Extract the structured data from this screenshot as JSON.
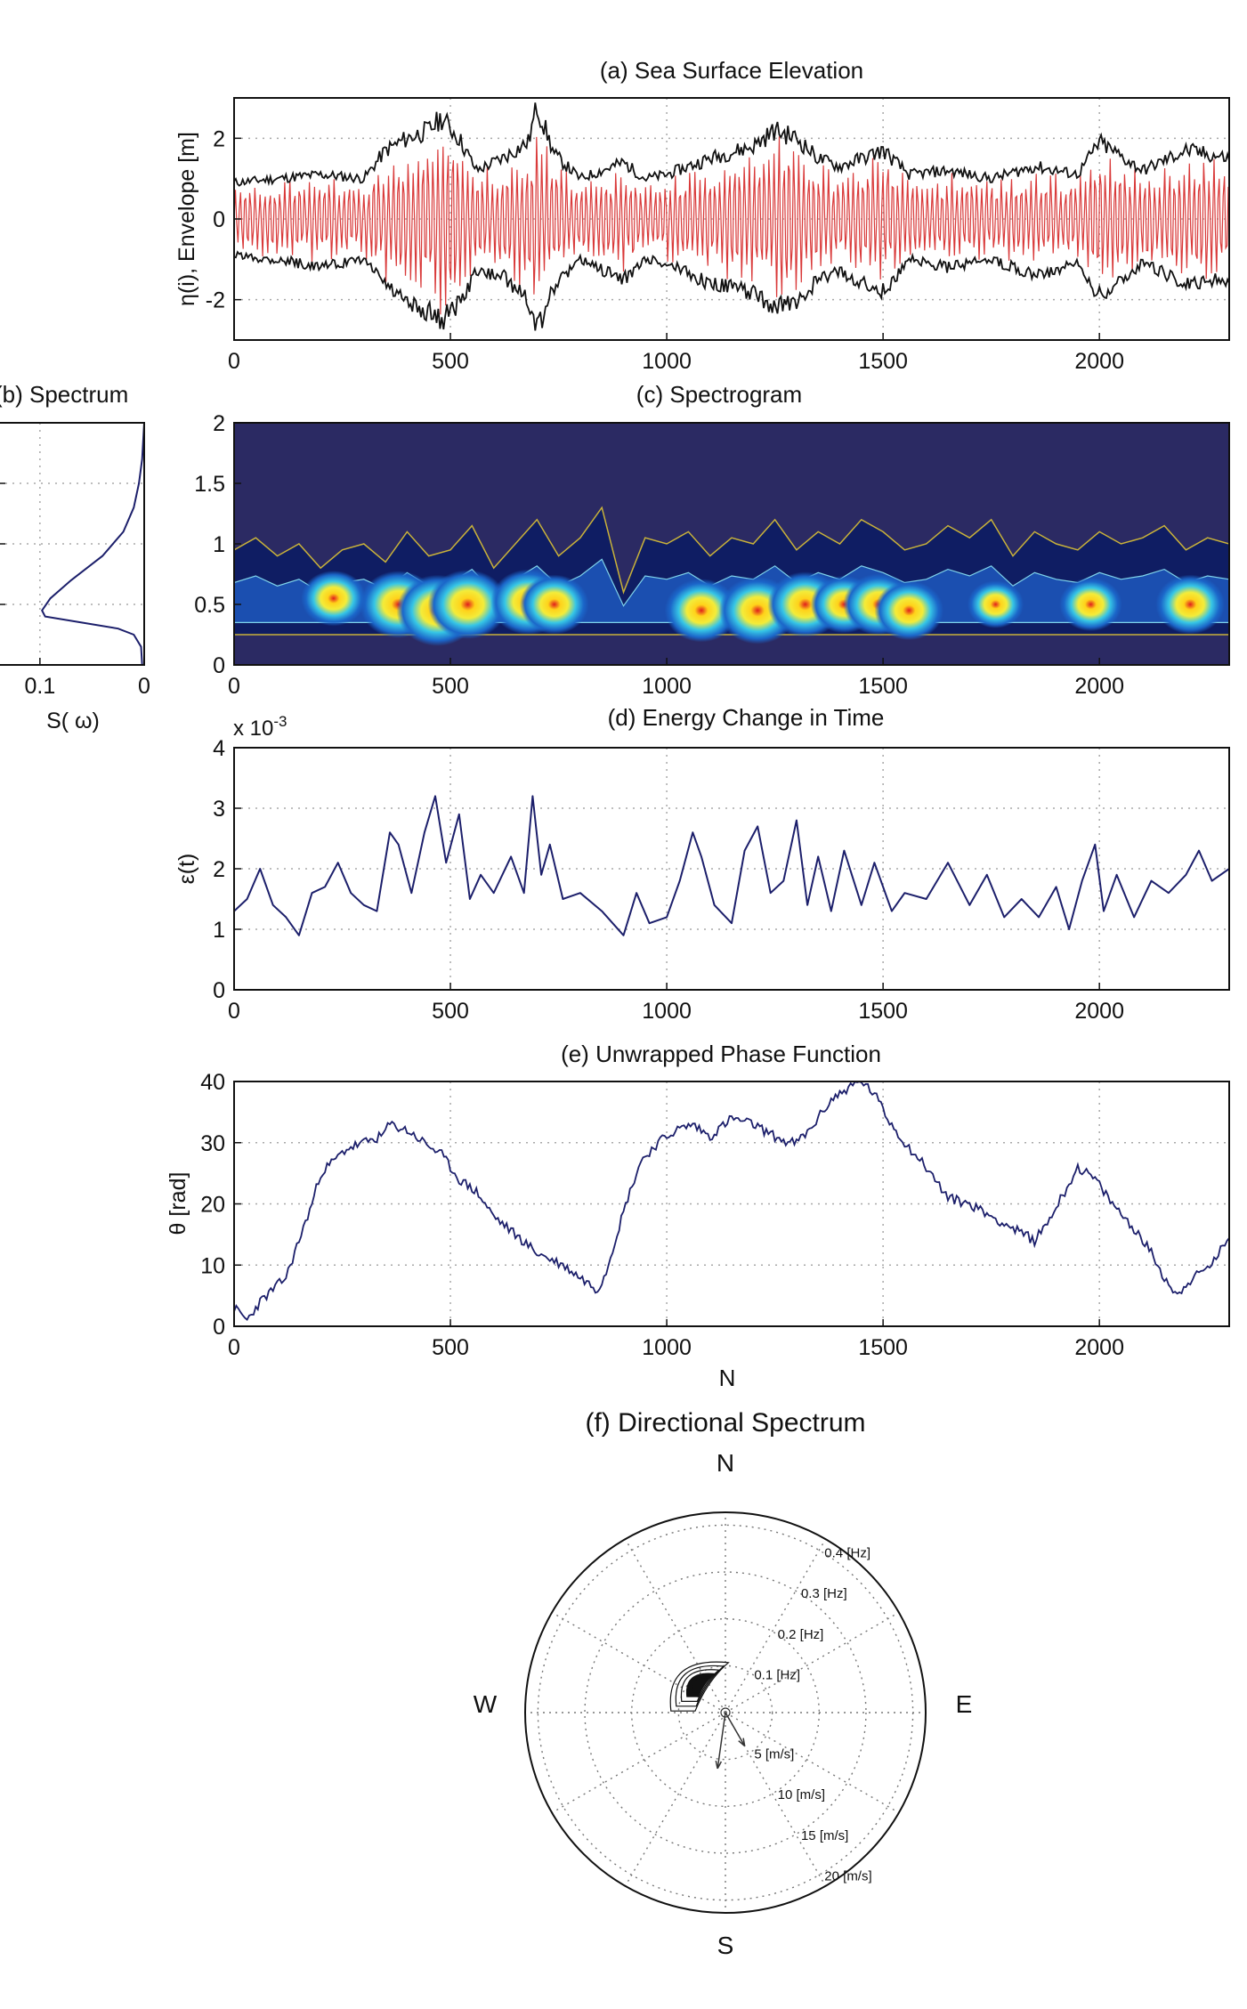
{
  "colors": {
    "envelope": "#111111",
    "signal": "#d93a3a",
    "line": "#1c1f6b",
    "spectrogram_bg": "#2b2a63",
    "contour_edge": "#c9b23a",
    "grid": "#a8a8a8"
  },
  "chart_data": [
    {
      "id": "a",
      "type": "line",
      "title": "(a) Sea Surface Elevation",
      "ylabel": "η(i), Envelope [m]",
      "xlim": [
        0,
        2300
      ],
      "ylim": [
        -3,
        3
      ],
      "xticks": [
        0,
        500,
        1000,
        1500,
        2000
      ],
      "yticks": [
        -2,
        0,
        2
      ],
      "grid": true,
      "series": [
        {
          "role": "envelope-upper",
          "color": "#111111",
          "x": [
            0,
            100,
            200,
            300,
            350,
            400,
            450,
            480,
            520,
            560,
            620,
            680,
            700,
            740,
            800,
            900,
            950,
            1000,
            1100,
            1200,
            1250,
            1300,
            1350,
            1400,
            1500,
            1560,
            1650,
            1750,
            1850,
            1950,
            2000,
            2100,
            2200,
            2300
          ],
          "y": [
            0.9,
            1.0,
            1.1,
            1.0,
            1.7,
            2.0,
            2.2,
            2.5,
            2.0,
            1.2,
            1.5,
            1.9,
            2.8,
            1.6,
            1.0,
            1.4,
            1.0,
            1.1,
            1.5,
            1.8,
            2.2,
            2.0,
            1.5,
            1.3,
            1.7,
            1.1,
            1.2,
            1.0,
            1.3,
            1.1,
            1.9,
            1.2,
            1.7,
            1.5
          ]
        },
        {
          "role": "envelope-lower",
          "color": "#111111",
          "x": [
            0,
            100,
            200,
            300,
            350,
            400,
            450,
            480,
            520,
            560,
            620,
            680,
            700,
            740,
            800,
            900,
            950,
            1000,
            1100,
            1200,
            1250,
            1300,
            1350,
            1400,
            1500,
            1560,
            1650,
            1750,
            1850,
            1950,
            2000,
            2100,
            2200,
            2300
          ],
          "y": [
            -0.9,
            -1.0,
            -1.2,
            -1.0,
            -1.6,
            -2.1,
            -2.3,
            -2.5,
            -2.1,
            -1.3,
            -1.4,
            -2.0,
            -2.8,
            -1.7,
            -1.0,
            -1.5,
            -1.0,
            -1.1,
            -1.6,
            -1.8,
            -2.2,
            -2.1,
            -1.5,
            -1.3,
            -1.8,
            -1.0,
            -1.2,
            -1.0,
            -1.4,
            -1.1,
            -1.9,
            -1.1,
            -1.6,
            -1.5
          ]
        }
      ]
    },
    {
      "id": "b",
      "type": "line",
      "title": "(b) Spectrum",
      "xlabel": "S( ω)",
      "xlim": [
        0.14,
        0
      ],
      "ylim": [
        0,
        2
      ],
      "xticks": [
        0.1,
        0
      ],
      "grid": true,
      "series": [
        {
          "color": "#1c1f6b",
          "x": [
            0,
            0.002,
            0.005,
            0.01,
            0.02,
            0.04,
            0.07,
            0.09,
            0.098,
            0.095,
            0.06,
            0.025,
            0.01,
            0.003,
            0.002
          ],
          "y": [
            2.0,
            1.7,
            1.5,
            1.3,
            1.1,
            0.9,
            0.7,
            0.55,
            0.45,
            0.4,
            0.35,
            0.3,
            0.25,
            0.15,
            0.0
          ]
        }
      ]
    },
    {
      "id": "c",
      "type": "heatmap",
      "title": "(c) Spectrogram",
      "xlim": [
        0,
        2300
      ],
      "ylim": [
        0,
        2
      ],
      "xticks": [
        0,
        500,
        1000,
        1500,
        2000
      ],
      "yticks": [
        0,
        0.5,
        1,
        1.5,
        2
      ],
      "grid": false,
      "band_top": {
        "x": [
          0,
          50,
          100,
          150,
          200,
          250,
          300,
          350,
          400,
          450,
          500,
          550,
          600,
          650,
          700,
          750,
          800,
          850,
          900,
          950,
          1000,
          1050,
          1100,
          1150,
          1200,
          1250,
          1300,
          1350,
          1400,
          1450,
          1500,
          1550,
          1600,
          1650,
          1700,
          1750,
          1800,
          1850,
          1900,
          1950,
          2000,
          2050,
          2100,
          2150,
          2200,
          2250,
          2300
        ],
        "y": [
          0.95,
          1.05,
          0.9,
          1.0,
          0.8,
          0.95,
          1.0,
          0.85,
          1.1,
          0.9,
          0.95,
          1.15,
          0.8,
          1.0,
          1.2,
          0.9,
          1.05,
          1.3,
          0.6,
          1.05,
          1.0,
          1.1,
          0.9,
          1.05,
          1.0,
          1.2,
          0.95,
          1.1,
          1.0,
          1.2,
          1.1,
          0.95,
          1.0,
          1.15,
          1.05,
          1.2,
          0.9,
          1.1,
          1.0,
          0.95,
          1.1,
          1.0,
          1.05,
          1.15,
          0.95,
          1.05,
          1.0
        ]
      },
      "peaks": [
        {
          "x": 230,
          "y": 0.55,
          "v": 0.6
        },
        {
          "x": 380,
          "y": 0.5,
          "v": 0.9
        },
        {
          "x": 470,
          "y": 0.45,
          "v": 1.0
        },
        {
          "x": 540,
          "y": 0.5,
          "v": 0.95
        },
        {
          "x": 680,
          "y": 0.52,
          "v": 0.85
        },
        {
          "x": 740,
          "y": 0.5,
          "v": 0.7
        },
        {
          "x": 1080,
          "y": 0.45,
          "v": 0.8
        },
        {
          "x": 1210,
          "y": 0.45,
          "v": 0.9
        },
        {
          "x": 1320,
          "y": 0.5,
          "v": 0.85
        },
        {
          "x": 1410,
          "y": 0.5,
          "v": 0.65
        },
        {
          "x": 1490,
          "y": 0.5,
          "v": 0.75
        },
        {
          "x": 1560,
          "y": 0.45,
          "v": 0.7
        },
        {
          "x": 1760,
          "y": 0.5,
          "v": 0.4
        },
        {
          "x": 1980,
          "y": 0.5,
          "v": 0.55
        },
        {
          "x": 2210,
          "y": 0.5,
          "v": 0.7
        }
      ]
    },
    {
      "id": "d",
      "type": "line",
      "title": "(d) Energy Change in Time",
      "ylabel": "ε(t)",
      "yscale_label": "x 10",
      "yscale_exp": "-3",
      "xlim": [
        0,
        2300
      ],
      "ylim": [
        0,
        4
      ],
      "xticks": [
        0,
        500,
        1000,
        1500,
        2000
      ],
      "yticks": [
        0,
        1,
        2,
        3,
        4
      ],
      "grid": true,
      "series": [
        {
          "color": "#1c1f6b",
          "x": [
            0,
            30,
            60,
            90,
            120,
            150,
            180,
            210,
            240,
            270,
            300,
            330,
            360,
            380,
            410,
            440,
            465,
            490,
            520,
            545,
            570,
            600,
            640,
            670,
            690,
            710,
            730,
            760,
            800,
            850,
            900,
            930,
            960,
            1000,
            1030,
            1060,
            1080,
            1110,
            1150,
            1180,
            1210,
            1240,
            1270,
            1300,
            1325,
            1350,
            1380,
            1410,
            1450,
            1480,
            1520,
            1550,
            1600,
            1650,
            1700,
            1740,
            1780,
            1820,
            1860,
            1900,
            1930,
            1960,
            1990,
            2010,
            2040,
            2080,
            2120,
            2160,
            2200,
            2230,
            2260,
            2300
          ],
          "y": [
            1.3,
            1.5,
            2.0,
            1.4,
            1.2,
            0.9,
            1.6,
            1.7,
            2.1,
            1.6,
            1.4,
            1.3,
            2.6,
            2.4,
            1.6,
            2.6,
            3.2,
            2.1,
            2.9,
            1.5,
            1.9,
            1.6,
            2.2,
            1.6,
            3.2,
            1.9,
            2.4,
            1.5,
            1.6,
            1.3,
            0.9,
            1.6,
            1.1,
            1.2,
            1.8,
            2.6,
            2.2,
            1.4,
            1.1,
            2.3,
            2.7,
            1.6,
            1.8,
            2.8,
            1.4,
            2.2,
            1.3,
            2.3,
            1.4,
            2.1,
            1.3,
            1.6,
            1.5,
            2.1,
            1.4,
            1.9,
            1.2,
            1.5,
            1.2,
            1.7,
            1.0,
            1.8,
            2.4,
            1.3,
            1.9,
            1.2,
            1.8,
            1.6,
            1.9,
            2.3,
            1.8,
            2.0
          ]
        }
      ]
    },
    {
      "id": "e",
      "type": "line",
      "title": "(e) Unwrapped Phase Function",
      "ylabel": "θ [rad]",
      "xlabel": "N",
      "xlim": [
        0,
        2300
      ],
      "ylim": [
        0,
        40
      ],
      "xticks": [
        0,
        500,
        1000,
        1500,
        2000
      ],
      "yticks": [
        0,
        10,
        20,
        30,
        40
      ],
      "grid": true,
      "series": [
        {
          "color": "#1c1f6b",
          "x": [
            0,
            30,
            60,
            90,
            120,
            150,
            180,
            200,
            230,
            260,
            300,
            340,
            360,
            400,
            440,
            480,
            520,
            560,
            600,
            650,
            700,
            760,
            800,
            840,
            860,
            880,
            910,
            940,
            980,
            1020,
            1060,
            1100,
            1150,
            1200,
            1250,
            1280,
            1300,
            1330,
            1380,
            1420,
            1450,
            1480,
            1510,
            1550,
            1600,
            1650,
            1700,
            1750,
            1800,
            1850,
            1880,
            1920,
            1950,
            1990,
            2030,
            2080,
            2120,
            2150,
            2180,
            2200,
            2240,
            2270,
            2300
          ],
          "y": [
            3,
            1,
            4,
            6,
            8,
            14,
            20,
            25,
            27,
            29,
            30,
            31,
            33,
            32,
            30,
            28,
            24,
            22,
            18,
            15,
            12,
            10,
            8,
            6,
            9,
            14,
            21,
            27,
            30,
            32,
            33,
            31,
            34,
            33,
            31,
            30,
            30,
            32,
            37,
            39,
            40,
            38,
            34,
            30,
            26,
            21,
            20,
            18,
            16,
            14,
            17,
            22,
            26,
            24,
            20,
            16,
            12,
            8,
            5,
            7,
            9,
            11,
            15
          ]
        }
      ]
    },
    {
      "id": "f",
      "type": "polar",
      "title": "(f) Directional Spectrum",
      "directions": {
        "n": "N",
        "e": "E",
        "s": "S",
        "w": "W"
      },
      "frequency_rings": [
        "0.1 [Hz]",
        "0.2 [Hz]",
        "0.3 [Hz]",
        "0.4 [Hz]"
      ],
      "speed_rings": [
        "5 [m/s]",
        "10 [m/s]",
        "15 [m/s]",
        "20 [m/s]"
      ],
      "spoke_step_deg": 30,
      "spectrum_peak": {
        "direction_deg": 320,
        "frequency_hz": 0.08
      },
      "vectors": [
        {
          "direction_deg": 188,
          "speed_ms": 4.5
        },
        {
          "direction_deg": 150,
          "speed_ms": 2.5
        }
      ]
    }
  ]
}
